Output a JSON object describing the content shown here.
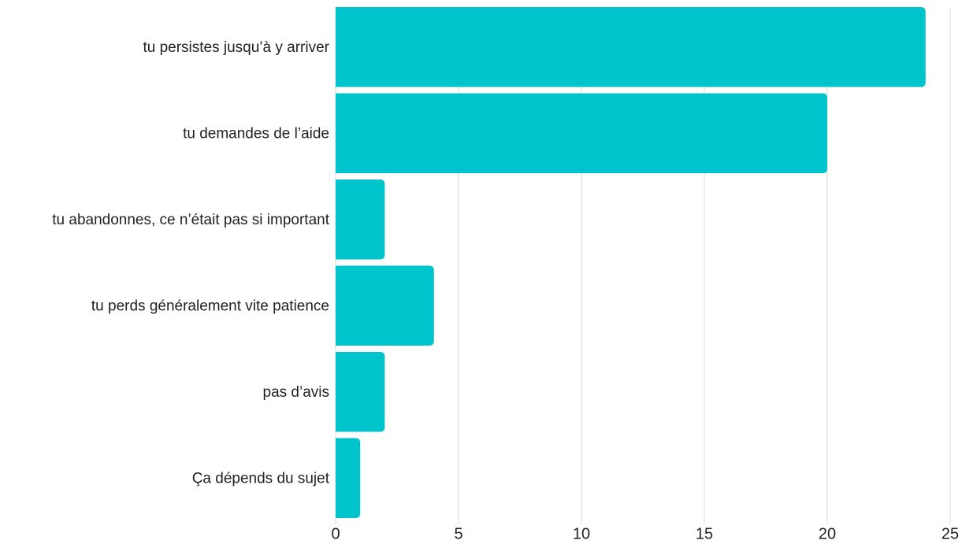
{
  "chart_data": {
    "type": "bar",
    "orientation": "horizontal",
    "categories": [
      "tu persistes jusqu’à y arriver",
      "tu demandes de l’aide",
      "tu abandonnes, ce n’était pas si important",
      "tu perds généralement vite patience",
      "pas d’avis",
      "Ça dépends du sujet"
    ],
    "values": [
      24,
      20,
      2,
      4,
      2,
      1
    ],
    "color": "#00c4cc",
    "xlim": [
      0,
      25
    ],
    "xticks": [
      0,
      5,
      10,
      15,
      20,
      25
    ],
    "grid": true
  }
}
